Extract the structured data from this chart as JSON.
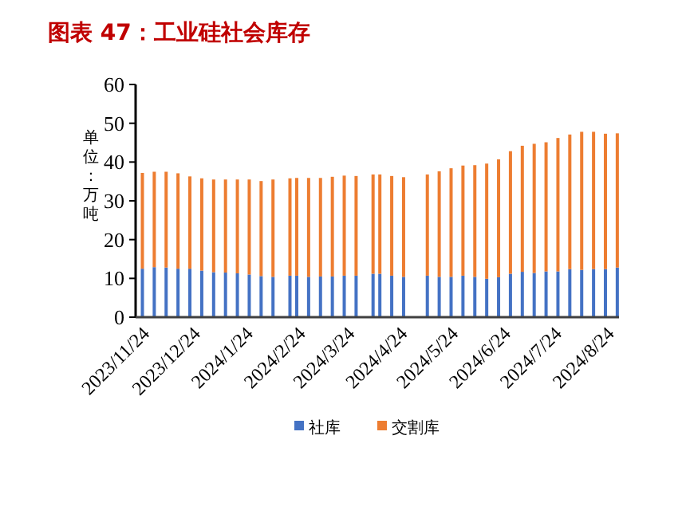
{
  "chart_data": {
    "type": "bar",
    "title": "图表 47：工业硅社会库存",
    "ylabel": "单位：万吨",
    "stacked": true,
    "x": [
      "2023-11-22",
      "2023-11-29",
      "2023-12-06",
      "2023-12-13",
      "2023-12-20",
      "2023-12-27",
      "2024-01-03",
      "2024-01-10",
      "2024-01-17",
      "2024-01-24",
      "2024-01-31",
      "2024-02-07",
      "2024-02-17",
      "2024-02-21",
      "2024-02-28",
      "2024-03-06",
      "2024-03-13",
      "2024-03-20",
      "2024-03-27",
      "2024-04-06",
      "2024-04-10",
      "2024-04-17",
      "2024-04-24",
      "2024-05-08",
      "2024-05-15",
      "2024-05-22",
      "2024-05-29",
      "2024-06-05",
      "2024-06-12",
      "2024-06-19",
      "2024-06-26",
      "2024-07-03",
      "2024-07-10",
      "2024-07-17",
      "2024-07-24",
      "2024-07-31",
      "2024-08-07",
      "2024-08-14",
      "2024-08-21",
      "2024-08-28"
    ],
    "series": [
      {
        "name": "社库",
        "color": "#4472c4",
        "values": [
          12.5,
          12.9,
          12.8,
          12.5,
          12.5,
          12.0,
          11.6,
          11.5,
          11.3,
          11.0,
          10.6,
          10.4,
          10.7,
          10.7,
          10.4,
          10.5,
          10.5,
          10.7,
          10.7,
          11.2,
          11.2,
          10.7,
          10.4,
          10.7,
          10.4,
          10.4,
          10.7,
          10.4,
          9.9,
          10.3,
          11.2,
          11.7,
          11.4,
          11.8,
          11.8,
          12.4,
          12.2,
          12.4,
          12.4,
          12.8
        ]
      },
      {
        "name": "交割库",
        "color": "#ed7d31",
        "values": [
          24.7,
          24.6,
          24.7,
          24.6,
          23.8,
          23.8,
          23.9,
          24.0,
          24.2,
          24.5,
          24.5,
          25.1,
          25.1,
          25.2,
          25.5,
          25.4,
          25.7,
          25.8,
          25.7,
          25.6,
          25.6,
          25.7,
          25.7,
          26.1,
          27.2,
          28.0,
          28.4,
          28.8,
          29.7,
          30.4,
          31.6,
          32.5,
          33.3,
          33.3,
          34.4,
          34.7,
          35.6,
          35.4,
          34.9,
          34.6
        ]
      }
    ],
    "xlim": [
      "2023-11-18",
      "2024-08-29"
    ],
    "xticks": [
      {
        "value": "2023-11-24",
        "label": "2023/11/24"
      },
      {
        "value": "2023-12-24",
        "label": "2023/12/24"
      },
      {
        "value": "2024-01-24",
        "label": "2024/1/24"
      },
      {
        "value": "2024-02-24",
        "label": "2024/2/24"
      },
      {
        "value": "2024-03-24",
        "label": "2024/3/24"
      },
      {
        "value": "2024-04-24",
        "label": "2024/4/24"
      },
      {
        "value": "2024-05-24",
        "label": "2024/5/24"
      },
      {
        "value": "2024-06-24",
        "label": "2024/6/24"
      },
      {
        "value": "2024-07-24",
        "label": "2024/7/24"
      },
      {
        "value": "2024-08-24",
        "label": "2024/8/24"
      }
    ],
    "ylim": [
      0,
      60
    ],
    "yticks": [
      0,
      10,
      20,
      30,
      40,
      50,
      60
    ],
    "grid": false,
    "legend": "bottom"
  }
}
